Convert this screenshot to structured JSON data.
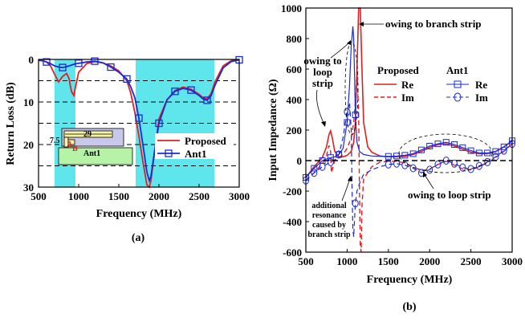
{
  "colors": {
    "proposed": "#e02020",
    "ant1": "#1a2ad8",
    "band": "#5fe6ec"
  },
  "chart_data": [
    {
      "type": "line",
      "panel_label": "(a)",
      "xlabel": "Frequency (MHz)",
      "ylabel": "Return Loss (dB)",
      "xlim": [
        500,
        3000
      ],
      "ylim": [
        30,
        0
      ],
      "y_inverted": true,
      "x_ticks": [
        500,
        1000,
        1500,
        2000,
        2500,
        3000
      ],
      "y_ticks": [
        0,
        10,
        20,
        30
      ],
      "y_tick_labels": [
        "0",
        "10",
        "20",
        "30"
      ],
      "dashed_grid_y": [
        5,
        10,
        15,
        20,
        25
      ],
      "shaded_bands_mhz": [
        [
          698,
          960
        ],
        [
          1710,
          2690
        ]
      ],
      "legend": [
        "Proposed",
        "Ant1"
      ],
      "series": [
        {
          "name": "Proposed",
          "x": [
            500,
            550,
            600,
            650,
            700,
            750,
            800,
            850,
            880,
            910,
            940,
            960,
            1000,
            1100,
            1200,
            1300,
            1400,
            1500,
            1600,
            1650,
            1700,
            1750,
            1800,
            1850,
            1880,
            1900,
            1950,
            2000,
            2100,
            2200,
            2300,
            2400,
            2500,
            2550,
            2600,
            2650,
            2700,
            2800,
            2900,
            3000
          ],
          "y": [
            0.2,
            0.3,
            0.6,
            1.5,
            3.5,
            5.3,
            4.0,
            3.3,
            4.5,
            7.5,
            8.5,
            6.5,
            3.0,
            1.0,
            0.5,
            0.8,
            1.5,
            2.7,
            5.0,
            8.0,
            12.5,
            18.0,
            24.0,
            29.5,
            30.0,
            28.5,
            21.0,
            14.0,
            9.5,
            7.3,
            6.5,
            7.0,
            8.2,
            9.0,
            9.3,
            8.0,
            5.2,
            1.5,
            0.3,
            0.0
          ]
        },
        {
          "name": "Ant1",
          "x": [
            500,
            550,
            600,
            650,
            700,
            750,
            800,
            850,
            900,
            950,
            1000,
            1100,
            1200,
            1300,
            1400,
            1500,
            1600,
            1650,
            1700,
            1750,
            1800,
            1850,
            1880,
            1900,
            1950,
            2000,
            2100,
            2200,
            2300,
            2400,
            2500,
            2550,
            2600,
            2650,
            2700,
            2800,
            2900,
            3000
          ],
          "y": [
            0.2,
            0.3,
            0.6,
            1.0,
            1.5,
            1.8,
            1.9,
            1.7,
            1.4,
            1.1,
            0.9,
            0.6,
            0.4,
            0.8,
            1.8,
            3.0,
            4.6,
            6.5,
            9.0,
            13.8,
            20.0,
            26.5,
            28.5,
            27.5,
            21.0,
            15.0,
            9.5,
            7.5,
            6.8,
            7.2,
            8.5,
            9.3,
            9.6,
            8.5,
            6.0,
            2.0,
            0.5,
            0.1
          ]
        }
      ],
      "markers": {
        "Ant1": [
          [
            600,
            0.6
          ],
          [
            800,
            1.9
          ],
          [
            1000,
            0.9
          ],
          [
            1200,
            0.4
          ],
          [
            1400,
            1.8
          ],
          [
            1600,
            4.6
          ],
          [
            1750,
            13.8
          ],
          [
            2000,
            15.0
          ],
          [
            2200,
            7.5
          ],
          [
            2400,
            7.2
          ],
          [
            2600,
            9.6
          ],
          [
            3000,
            0.1
          ]
        ]
      },
      "inset": {
        "dim_29": "29",
        "dim_7_5": "7.5",
        "label_a": "A",
        "label_b": "B",
        "label_ant1": "Ant1"
      }
    },
    {
      "type": "line",
      "panel_label": "(b)",
      "xlabel": "Frequency (MHz)",
      "ylabel": "Input Impedance (Ω)",
      "xlim": [
        500,
        3000
      ],
      "ylim": [
        -600,
        1000
      ],
      "x_ticks": [
        500,
        1000,
        1500,
        2000,
        2500,
        3000
      ],
      "y_ticks": [
        -600,
        -400,
        -200,
        0,
        200,
        400,
        600,
        800,
        1000
      ],
      "legend": {
        "group1": "Proposed",
        "group2": "Ant1",
        "re": "Re",
        "im": "Im"
      },
      "annotations": {
        "branch": "owing to branch strip",
        "loop1": "owing to",
        "loop2": "loop",
        "loop3": "strip",
        "loop_bottom": "owing to loop strip",
        "add1": "additional",
        "add2": "resonance",
        "add3": "caused by",
        "add4": "branch strip"
      },
      "series": [
        {
          "name": "Proposed Re",
          "x": [
            500,
            600,
            700,
            750,
            780,
            800,
            820,
            850,
            900,
            950,
            1000,
            1050,
            1080,
            1100,
            1120,
            1140,
            1160,
            1180,
            1200,
            1250,
            1300,
            1400,
            1500,
            1600,
            1700,
            1800,
            1900,
            2000,
            2100,
            2200,
            2300,
            2400,
            2500,
            2600,
            2700,
            2800,
            2900,
            3000
          ],
          "y": [
            -110,
            -40,
            20,
            90,
            170,
            195,
            150,
            60,
            25,
            25,
            35,
            60,
            120,
            250,
            600,
            1000,
            1000,
            600,
            250,
            90,
            55,
            30,
            25,
            25,
            28,
            40,
            60,
            85,
            105,
            110,
            95,
            75,
            55,
            45,
            45,
            60,
            90,
            130
          ]
        },
        {
          "name": "Proposed Im",
          "x": [
            500,
            600,
            700,
            750,
            780,
            800,
            810,
            820,
            850,
            900,
            950,
            1000,
            1050,
            1080,
            1100,
            1120,
            1140,
            1150,
            1160,
            1170,
            1180,
            1200,
            1300,
            1400,
            1500,
            1600,
            1700,
            1800,
            1900,
            2000,
            2100,
            2200,
            2300,
            2400,
            2500,
            2600,
            2700,
            2800,
            2900,
            3000
          ],
          "y": [
            -130,
            -80,
            -20,
            30,
            100,
            60,
            -80,
            -60,
            0,
            20,
            40,
            80,
            150,
            250,
            380,
            600,
            300,
            -200,
            -550,
            -600,
            -300,
            -120,
            -40,
            -10,
            -5,
            -5,
            -15,
            -40,
            -65,
            -55,
            -25,
            -5,
            -30,
            -55,
            -60,
            -40,
            -15,
            20,
            60,
            110
          ]
        },
        {
          "name": "Ant1 Re",
          "x": [
            500,
            600,
            700,
            800,
            850,
            900,
            950,
            1000,
            1030,
            1050,
            1070,
            1080,
            1090,
            1100,
            1120,
            1150,
            1200,
            1300,
            1400,
            1500,
            1600,
            1700,
            1800,
            1900,
            2000,
            2100,
            2200,
            2300,
            2400,
            2500,
            2600,
            2700,
            2800,
            2900,
            3000
          ],
          "y": [
            -110,
            -50,
            0,
            20,
            25,
            40,
            80,
            250,
            500,
            750,
            880,
            800,
            550,
            300,
            120,
            60,
            40,
            30,
            28,
            28,
            30,
            35,
            45,
            70,
            95,
            110,
            120,
            105,
            85,
            65,
            50,
            50,
            60,
            90,
            130
          ]
        },
        {
          "name": "Ant1 Im",
          "x": [
            500,
            600,
            700,
            800,
            850,
            900,
            950,
            1000,
            1030,
            1050,
            1060,
            1070,
            1080,
            1090,
            1100,
            1120,
            1150,
            1200,
            1300,
            1400,
            1500,
            1600,
            1700,
            1800,
            1900,
            2000,
            2100,
            2200,
            2300,
            2400,
            2500,
            2600,
            2700,
            2800,
            2900,
            3000
          ],
          "y": [
            -130,
            -80,
            -40,
            -10,
            5,
            40,
            150,
            320,
            380,
            200,
            -200,
            -450,
            -500,
            -380,
            -280,
            -200,
            -150,
            -90,
            -60,
            -40,
            -25,
            -20,
            -30,
            -50,
            -80,
            -60,
            -25,
            0,
            -20,
            -45,
            -55,
            -35,
            -10,
            25,
            65,
            110
          ]
        }
      ]
    }
  ]
}
